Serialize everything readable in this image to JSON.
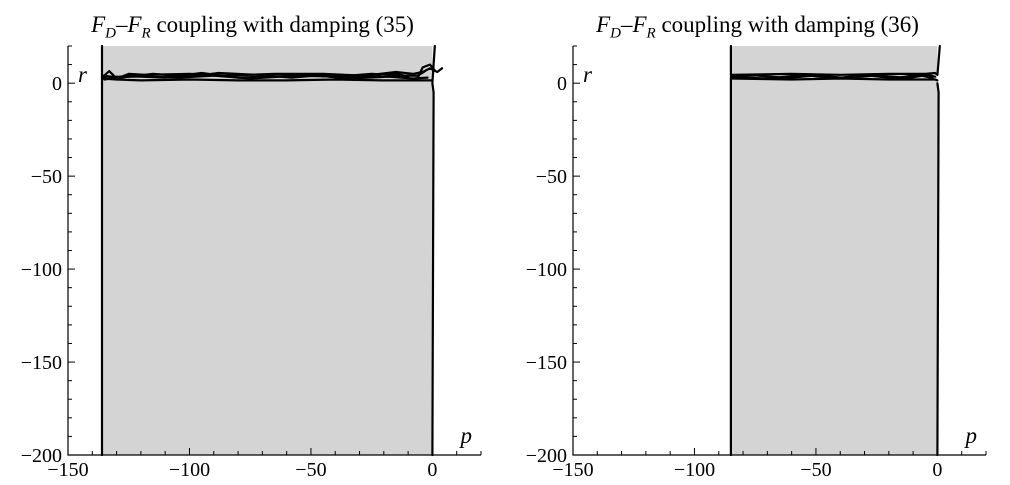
{
  "chart_data": [
    {
      "type": "region",
      "title": "F_D–F_R coupling with damping (35)",
      "xlabel": "p",
      "ylabel": "r",
      "xlim": [
        -150,
        20
      ],
      "ylim": [
        -200,
        20
      ],
      "xticks": [
        {
          "v": -150,
          "t": "−150"
        },
        {
          "v": -100,
          "t": "−100"
        },
        {
          "v": -50,
          "t": "−50"
        },
        {
          "v": 0,
          "t": "0"
        }
      ],
      "yticks": [
        {
          "v": 0,
          "t": "0"
        },
        {
          "v": -50,
          "t": "−50"
        },
        {
          "v": -100,
          "t": "−100"
        },
        {
          "v": -150,
          "t": "−150"
        },
        {
          "v": -200,
          "t": "−200"
        }
      ],
      "region": {
        "p_min": -136,
        "p_max": 0,
        "r_min": -200,
        "r_max": 20
      },
      "boundary_curves": [
        [
          [
            -136,
            -200
          ],
          [
            -136,
            20
          ]
        ],
        [
          [
            0,
            -200
          ],
          [
            0.5,
            -5
          ],
          [
            0,
            0
          ],
          [
            1,
            20
          ]
        ],
        [
          [
            -136,
            2.5
          ],
          [
            -130,
            2
          ],
          [
            -120,
            1.5
          ],
          [
            -100,
            2
          ],
          [
            -80,
            1.5
          ],
          [
            -60,
            1.5
          ],
          [
            -40,
            2
          ],
          [
            -20,
            1.5
          ],
          [
            -5,
            1.5
          ],
          [
            0,
            1.5
          ]
        ],
        [
          [
            -136,
            3
          ],
          [
            -133,
            6.5
          ],
          [
            -130,
            2.5
          ],
          [
            -125,
            5
          ],
          [
            -118,
            4.5
          ],
          [
            -100,
            5
          ],
          [
            -85,
            4
          ],
          [
            -65,
            5
          ],
          [
            -45,
            5
          ],
          [
            -28,
            4
          ],
          [
            -15,
            6
          ],
          [
            -8,
            5
          ],
          [
            -4,
            6
          ],
          [
            -1,
            8
          ],
          [
            2,
            6
          ],
          [
            4,
            8
          ]
        ],
        [
          [
            -136,
            3.5
          ],
          [
            -120,
            3.5
          ],
          [
            -110,
            3
          ],
          [
            -95,
            5.5
          ],
          [
            -80,
            3
          ],
          [
            -70,
            3.5
          ],
          [
            -55,
            4
          ],
          [
            -40,
            3.5
          ],
          [
            -25,
            5
          ],
          [
            -12,
            4
          ],
          [
            -6,
            4
          ],
          [
            -3,
            6.5
          ]
        ],
        [
          [
            -135,
            2
          ],
          [
            -125,
            4
          ],
          [
            -105,
            3
          ],
          [
            -90,
            4
          ],
          [
            -75,
            2.5
          ],
          [
            -50,
            4.5
          ],
          [
            -35,
            2.5
          ],
          [
            -18,
            3.5
          ],
          [
            -8,
            2.5
          ],
          [
            -2,
            3
          ]
        ],
        [
          [
            -136,
            4
          ],
          [
            -128,
            3
          ],
          [
            -115,
            5
          ],
          [
            -100,
            3.5
          ],
          [
            -88,
            5.5
          ],
          [
            -72,
            4.5
          ],
          [
            -58,
            3
          ],
          [
            -44,
            4.5
          ],
          [
            -30,
            3
          ],
          [
            -16,
            5.5
          ],
          [
            -10,
            3.5
          ]
        ],
        [
          [
            -6,
            3
          ],
          [
            -4,
            8.5
          ],
          [
            -1,
            10
          ],
          [
            1,
            7
          ]
        ]
      ]
    },
    {
      "type": "region",
      "title": "F_D–F_R coupling with damping (36)",
      "xlabel": "p",
      "ylabel": "r",
      "xlim": [
        -150,
        20
      ],
      "ylim": [
        -200,
        20
      ],
      "xticks": [
        {
          "v": -150,
          "t": "−150"
        },
        {
          "v": -100,
          "t": "−100"
        },
        {
          "v": -50,
          "t": "−50"
        },
        {
          "v": 0,
          "t": "0"
        }
      ],
      "yticks": [
        {
          "v": 0,
          "t": "0"
        },
        {
          "v": -50,
          "t": "−50"
        },
        {
          "v": -100,
          "t": "−100"
        },
        {
          "v": -150,
          "t": "−150"
        },
        {
          "v": -200,
          "t": "−200"
        }
      ],
      "region": {
        "p_min": -85,
        "p_max": 0,
        "r_min": -200,
        "r_max": 20
      },
      "boundary_curves": [
        [
          [
            -85,
            -200
          ],
          [
            -85,
            2.5
          ]
        ],
        [
          [
            -85,
            4.5
          ],
          [
            -85,
            20
          ]
        ],
        [
          [
            0,
            -200
          ],
          [
            0.5,
            -5
          ],
          [
            0,
            0
          ]
        ],
        [
          [
            0,
            4.5
          ],
          [
            0.5,
            12
          ],
          [
            1,
            20
          ]
        ],
        [
          [
            -85,
            4.5
          ],
          [
            -60,
            5
          ],
          [
            -40,
            4.5
          ],
          [
            -20,
            5
          ],
          [
            -5,
            5
          ],
          [
            -1,
            5.5
          ],
          [
            0,
            4.5
          ]
        ],
        [
          [
            -85,
            2.5
          ],
          [
            -60,
            2
          ],
          [
            -40,
            2.5
          ],
          [
            -20,
            2
          ],
          [
            -5,
            2
          ],
          [
            -1,
            2
          ],
          [
            0,
            1.5
          ]
        ],
        [
          [
            -85,
            3.5
          ],
          [
            -75,
            4.2
          ],
          [
            -62,
            2.8
          ],
          [
            -50,
            4.2
          ],
          [
            -38,
            2.8
          ],
          [
            -25,
            4.2
          ],
          [
            -12,
            2.8
          ],
          [
            -4,
            4.5
          ],
          [
            -1,
            3.5
          ]
        ],
        [
          [
            -85,
            3.2
          ],
          [
            -70,
            2.5
          ],
          [
            -55,
            4.4
          ],
          [
            -42,
            2.6
          ],
          [
            -30,
            4.4
          ],
          [
            -18,
            2.6
          ],
          [
            -8,
            4.5
          ],
          [
            -2,
            2.8
          ]
        ]
      ]
    }
  ]
}
